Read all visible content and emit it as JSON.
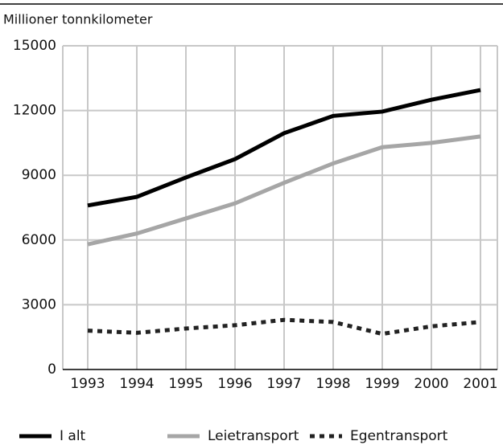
{
  "chart_data": {
    "type": "line",
    "y_label": "Millioner tonnkilometer",
    "categories": [
      "1993",
      "1994",
      "1995",
      "1996",
      "1997",
      "1998",
      "1999",
      "2000",
      "2001"
    ],
    "series": [
      {
        "name": "I alt",
        "color": "#000000",
        "line_style": "solid",
        "values": [
          7600,
          8000,
          8900,
          9750,
          10950,
          11750,
          11950,
          12500,
          12950
        ]
      },
      {
        "name": "Leietransport",
        "color": "#a6a6a6",
        "line_style": "solid",
        "values": [
          5800,
          6300,
          7000,
          7700,
          8650,
          9550,
          10300,
          10500,
          10800
        ]
      },
      {
        "name": "Egentransport",
        "color": "#222222",
        "line_style": "dashed",
        "values": [
          1800,
          1700,
          1900,
          2050,
          2300,
          2200,
          1650,
          2000,
          2200
        ]
      }
    ],
    "ylim": [
      0,
      15000
    ],
    "yticks": [
      0,
      3000,
      6000,
      9000,
      12000,
      15000
    ],
    "grid": true,
    "legend": "bottom"
  }
}
